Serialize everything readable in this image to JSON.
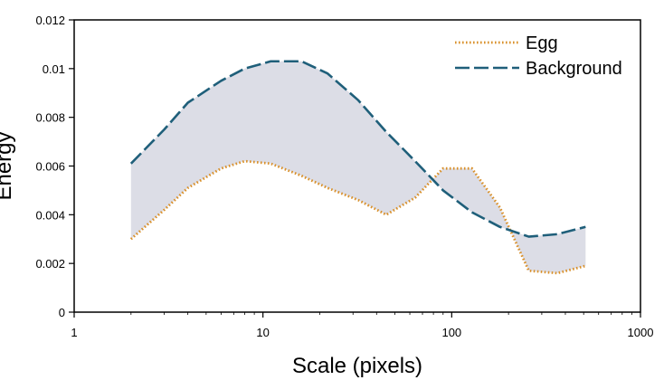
{
  "chart_data": {
    "type": "line",
    "xscale": "log",
    "xlabel": "Scale (pixels)",
    "ylabel": "Energy",
    "xlim": [
      1,
      1000
    ],
    "ylim": [
      0,
      0.012
    ],
    "xticks": [
      "1",
      "10",
      "100",
      "1000"
    ],
    "yticks": [
      "0",
      "0.002",
      "0.004",
      "0.006",
      "0.008",
      "0.01",
      "0.012"
    ],
    "legend_position": "top-right",
    "fill_between_series": true,
    "fill_color": "#dcdde6",
    "series": [
      {
        "name": "Egg",
        "color": "#d9902a",
        "style": "dotted",
        "x": [
          2,
          3,
          4,
          6,
          8,
          11,
          16,
          22,
          32,
          45,
          64,
          90,
          128,
          180,
          256,
          362,
          512
        ],
        "y": [
          0.003,
          0.0042,
          0.0051,
          0.0059,
          0.0062,
          0.0061,
          0.0056,
          0.0051,
          0.0046,
          0.004,
          0.0047,
          0.0059,
          0.0059,
          0.0043,
          0.0017,
          0.0016,
          0.0019
        ]
      },
      {
        "name": "Background",
        "color": "#1f5f7a",
        "style": "dashed",
        "x": [
          2,
          3,
          4,
          6,
          8,
          11,
          16,
          22,
          32,
          45,
          64,
          90,
          128,
          180,
          256,
          362,
          512
        ],
        "y": [
          0.0061,
          0.0075,
          0.0086,
          0.0095,
          0.01,
          0.0103,
          0.0103,
          0.0098,
          0.0087,
          0.0074,
          0.0062,
          0.005,
          0.0041,
          0.0035,
          0.0031,
          0.0032,
          0.0035
        ]
      }
    ]
  }
}
